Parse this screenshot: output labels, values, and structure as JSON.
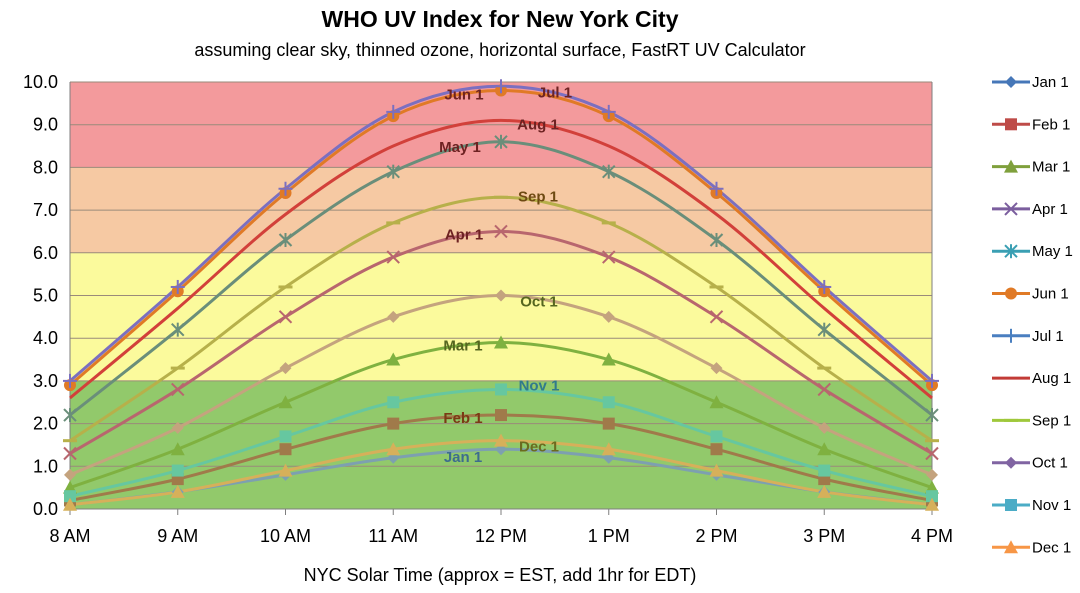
{
  "chart_data": {
    "type": "line",
    "title": "WHO UV Index for New York City",
    "subtitle": "assuming clear sky, thinned ozone, horizontal surface, FastRT UV Calculator",
    "xlabel": "NYC Solar Time (approx = EST, add 1hr for EDT)",
    "ylabel": "",
    "ylim": [
      0,
      10
    ],
    "yticks": [
      "0.0",
      "1.0",
      "2.0",
      "3.0",
      "4.0",
      "5.0",
      "6.0",
      "7.0",
      "8.0",
      "9.0",
      "10.0"
    ],
    "categories": [
      "8 AM",
      "9 AM",
      "10 AM",
      "11 AM",
      "12 PM",
      "1 PM",
      "2 PM",
      "3 PM",
      "4 PM"
    ],
    "bands": [
      {
        "from": 0,
        "to": 3,
        "color": "#92c96b"
      },
      {
        "from": 3,
        "to": 6,
        "color": "#fbfa9c"
      },
      {
        "from": 6,
        "to": 8,
        "color": "#f6c9a3"
      },
      {
        "from": 8,
        "to": 10,
        "color": "#f39a9c"
      }
    ],
    "legend_position": "right",
    "series": [
      {
        "name": "Jan 1",
        "color": "#4677b8",
        "marker": "diamond",
        "label": "Jan 1",
        "label_color": "#3d6c8f",
        "values": [
          0.1,
          0.4,
          0.8,
          1.2,
          1.4,
          1.2,
          0.8,
          0.4,
          0.1
        ]
      },
      {
        "name": "Feb 1",
        "color": "#be4b48",
        "marker": "square",
        "label": "Feb 1",
        "label_color": "#7a3a14",
        "values": [
          0.2,
          0.7,
          1.4,
          2.0,
          2.2,
          2.0,
          1.4,
          0.7,
          0.2
        ]
      },
      {
        "name": "Mar 1",
        "color": "#7fa03c",
        "marker": "triangle",
        "label": "Mar 1",
        "label_color": "#55661f",
        "values": [
          0.5,
          1.4,
          2.5,
          3.5,
          3.9,
          3.5,
          2.5,
          1.4,
          0.5
        ]
      },
      {
        "name": "Apr 1",
        "color": "#7b5e9e",
        "marker": "x",
        "label": "Apr 1",
        "label_color": "#6e2222",
        "values": [
          1.3,
          2.8,
          4.5,
          5.9,
          6.5,
          5.9,
          4.5,
          2.8,
          1.3
        ]
      },
      {
        "name": "May 1",
        "color": "#3a9fb3",
        "marker": "star",
        "label": "May 1",
        "label_color": "#6e2222",
        "values": [
          2.2,
          4.2,
          6.3,
          7.9,
          8.6,
          7.9,
          6.3,
          4.2,
          2.2
        ]
      },
      {
        "name": "Jun 1",
        "color": "#e07a26",
        "marker": "circle",
        "label": "Jun 1",
        "label_color": "#6e2222",
        "values": [
          2.9,
          5.1,
          7.4,
          9.2,
          9.8,
          9.2,
          7.4,
          5.1,
          2.9
        ]
      },
      {
        "name": "Jul 1",
        "color": "#4a7fc0",
        "marker": "plus",
        "label": "Jul 1",
        "label_color": "#6e2222",
        "values": [
          3.0,
          5.2,
          7.5,
          9.3,
          9.9,
          9.3,
          7.5,
          5.2,
          3.0
        ]
      },
      {
        "name": "Aug 1",
        "color": "#c23b36",
        "marker": "none",
        "label": "Aug 1",
        "label_color": "#6e2222",
        "values": [
          2.6,
          4.7,
          6.9,
          8.5,
          9.1,
          8.5,
          6.9,
          4.7,
          2.6
        ]
      },
      {
        "name": "Sep 1",
        "color": "#9fc83b",
        "marker": "dash",
        "label": "Sep 1",
        "label_color": "#6e4a12",
        "values": [
          1.6,
          3.3,
          5.2,
          6.7,
          7.3,
          6.7,
          5.2,
          3.3,
          1.6
        ]
      },
      {
        "name": "Oct 1",
        "color": "#8064a2",
        "marker": "diamond",
        "label": "Oct 1",
        "label_color": "#55661f",
        "values": [
          0.8,
          1.9,
          3.3,
          4.5,
          5.0,
          4.5,
          3.3,
          1.9,
          0.8
        ]
      },
      {
        "name": "Nov 1",
        "color": "#4bacc6",
        "marker": "square",
        "label": "Nov 1",
        "label_color": "#317a8c",
        "values": [
          0.3,
          0.9,
          1.7,
          2.5,
          2.8,
          2.5,
          1.7,
          0.9,
          0.3
        ]
      },
      {
        "name": "Dec 1",
        "color": "#f79646",
        "marker": "triangle",
        "label": "Dec 1",
        "label_color": "#6b6b1f",
        "values": [
          0.1,
          0.4,
          0.9,
          1.4,
          1.6,
          1.4,
          0.9,
          0.4,
          0.1
        ]
      }
    ],
    "curve_colors": {
      "Jan 1": "#7da0b0",
      "Feb 1": "#a07a4a",
      "Mar 1": "#7fb140",
      "Apr 1": "#b8666e",
      "May 1": "#6a8e7a",
      "Jun 1": "#e07a26",
      "Jul 1": "#7b6fc0",
      "Aug 1": "#d2403a",
      "Sep 1": "#b7b04a",
      "Oct 1": "#c4a37e",
      "Nov 1": "#66c7a0",
      "Dec 1": "#d6b05a"
    }
  }
}
